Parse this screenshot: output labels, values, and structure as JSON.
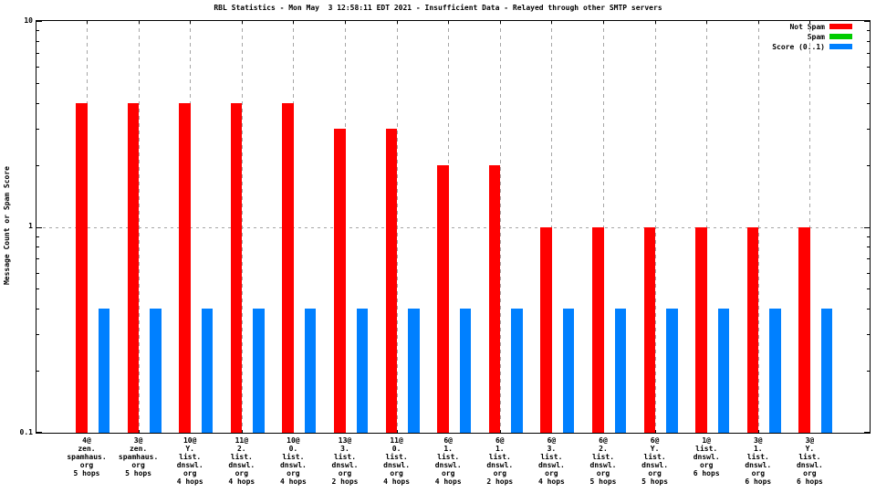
{
  "chart_data": {
    "type": "bar",
    "title": "RBL Statistics - Mon May  3 12:58:11 EDT 2021 - Insufficient Data - Relayed through other SMTP servers",
    "ylabel": "Message Count or Spam Score",
    "yscale": "log",
    "ylim": [
      0.1,
      10
    ],
    "ytick_labels": [
      "10",
      "1",
      "0.1"
    ],
    "ytick_values": [
      10,
      1,
      0.1
    ],
    "grid": true,
    "legend_position": "top-right",
    "axis_color": "#000000",
    "grid_color": "#a6a6a6",
    "categories": [
      [
        "4@",
        "zen.",
        "spamhaus.",
        "org",
        "5 hops"
      ],
      [
        "3@",
        "zen.",
        "spamhaus.",
        "org",
        "5 hops"
      ],
      [
        "10@",
        "Y.",
        "list.",
        "dnswl.",
        "org",
        "4 hops"
      ],
      [
        "11@",
        "2.",
        "list.",
        "dnswl.",
        "org",
        "4 hops"
      ],
      [
        "10@",
        "0.",
        "list.",
        "dnswl.",
        "org",
        "4 hops"
      ],
      [
        "13@",
        "3.",
        "list.",
        "dnswl.",
        "org",
        "2 hops"
      ],
      [
        "11@",
        "0.",
        "list.",
        "dnswl.",
        "org",
        "4 hops"
      ],
      [
        "6@",
        "1.",
        "list.",
        "dnswl.",
        "org",
        "4 hops"
      ],
      [
        "6@",
        "1.",
        "list.",
        "dnswl.",
        "org",
        "2 hops"
      ],
      [
        "6@",
        "3.",
        "list.",
        "dnswl.",
        "org",
        "4 hops"
      ],
      [
        "6@",
        "2.",
        "list.",
        "dnswl.",
        "org",
        "5 hops"
      ],
      [
        "6@",
        "Y.",
        "list.",
        "dnswl.",
        "org",
        "5 hops"
      ],
      [
        "1@",
        "list.",
        "dnswl.",
        "org",
        "6 hops"
      ],
      [
        "3@",
        "1.",
        "list.",
        "dnswl.",
        "org",
        "6 hops"
      ],
      [
        "3@",
        "Y.",
        "list.",
        "dnswl.",
        "org",
        "6 hops"
      ]
    ],
    "series": [
      {
        "name": "Not Spam",
        "color": "#ff0000",
        "values": [
          4,
          4,
          4,
          4,
          4,
          3,
          3,
          2,
          2,
          1,
          1,
          1,
          1,
          1,
          1
        ]
      },
      {
        "name": "Spam",
        "color": "#00cc00",
        "values": [
          0,
          0,
          0,
          0,
          0,
          0,
          0,
          0,
          0,
          0,
          0,
          0,
          0,
          0,
          0
        ]
      },
      {
        "name": "Score (0..1)",
        "color": "#0080ff",
        "values": [
          0.4,
          0.4,
          0.4,
          0.4,
          0.4,
          0.4,
          0.4,
          0.4,
          0.4,
          0.4,
          0.4,
          0.4,
          0.4,
          0.4,
          0.4
        ]
      }
    ]
  }
}
